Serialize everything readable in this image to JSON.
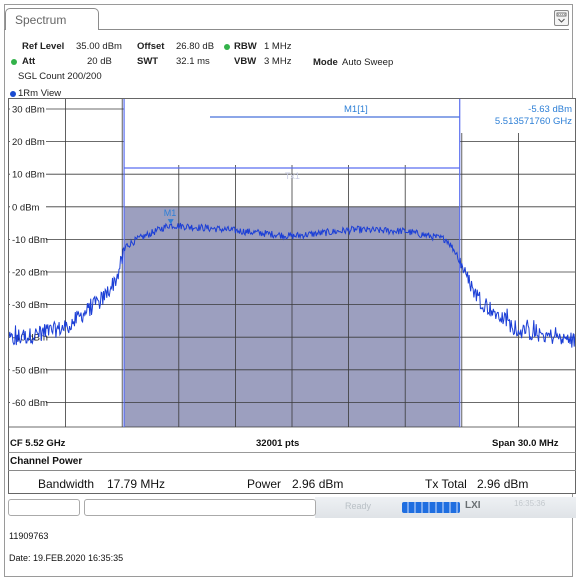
{
  "tab": {
    "label": "Spectrum"
  },
  "settings": {
    "ref_level_label": "Ref Level",
    "ref_level_value": "35.00 dBm",
    "att_label": "Att",
    "att_value": "20 dB",
    "offset_label": "Offset",
    "offset_value": "26.80 dB",
    "swt_label": "SWT",
    "swt_value": "32.1 ms",
    "rbw_label": "RBW",
    "rbw_value": "1 MHz",
    "vbw_label": "VBW",
    "vbw_value": "3 MHz",
    "mode_label": "Mode",
    "mode_value": "Auto Sweep",
    "sgl_count": "SGL Count 200/200"
  },
  "trace": {
    "label": "1Rm View",
    "color": "#1a4cd1"
  },
  "marker": {
    "name": "M1[1]",
    "level": "-5.63 dBm",
    "freq": "5.513571760 GHz",
    "plot_label": "M1",
    "center_label": "Tx1",
    "level_dbm": -5.63,
    "freq_ghz": 5.51357176
  },
  "axis": {
    "y_ticks": [
      "30 dBm",
      "20 dBm",
      "10 dBm",
      "0 dBm",
      "-10 dBm",
      "-20 dBm",
      "-30 dBm",
      "-40 dBm",
      "-50 dBm",
      "-60 dBm"
    ],
    "cf": "CF 5.52 GHz",
    "points": "32001 pts",
    "span": "Span 30.0 MHz"
  },
  "chart_data": {
    "type": "line",
    "x_unit": "GHz",
    "y_unit": "dBm",
    "xlim": [
      5.505,
      5.535
    ],
    "ylim": [
      -70,
      35
    ],
    "grid": true,
    "channel": {
      "x_range": [
        5.5111,
        5.52889
      ],
      "top_dbm": 0
    },
    "spectrum": {
      "x": [
        5.505,
        5.508,
        5.51,
        5.5107,
        5.5112,
        5.5118,
        5.5135,
        5.5165,
        5.52,
        5.5233,
        5.526,
        5.5282,
        5.5288,
        5.5293,
        5.53,
        5.532,
        5.535
      ],
      "y": [
        -41,
        -37,
        -28,
        -22,
        -12,
        -10,
        -5.6,
        -7,
        -9,
        -7,
        -7.5,
        -10,
        -15,
        -22,
        -29,
        -38,
        -41
      ]
    }
  },
  "channel_power": {
    "title": "Channel Power",
    "bandwidth_label": "Bandwidth",
    "bandwidth_value": "17.79 MHz",
    "power_label": "Power",
    "power_value": "2.96 dBm",
    "tx_total_label": "Tx Total",
    "tx_total_value": "2.96 dBm"
  },
  "status": {
    "ready": "Ready",
    "lxi": "LXI",
    "time": "16:35:36"
  },
  "footer": {
    "serial": "11909763",
    "date": "Date: 19.FEB.2020  16:35:35"
  }
}
